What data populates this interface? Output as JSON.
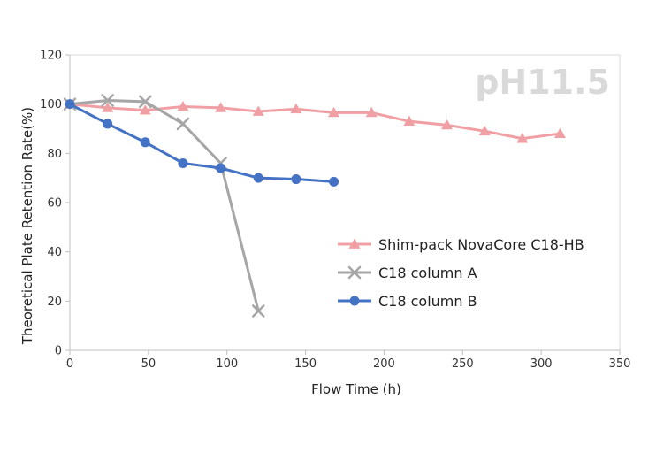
{
  "chart_data": {
    "type": "line",
    "title": "",
    "annotation": "pH11.5",
    "xlabel": "Flow Time (h)",
    "ylabel": "Theoretical Plate Retention Rate(%)",
    "xlim": [
      0,
      350
    ],
    "ylim": [
      0,
      120
    ],
    "xticks": [
      0,
      50,
      100,
      150,
      200,
      250,
      300,
      350
    ],
    "yticks": [
      0,
      20,
      40,
      60,
      80,
      100,
      120
    ],
    "xtick_labels": [
      "0",
      "50",
      "100",
      "150",
      "200",
      "250",
      "300",
      "350"
    ],
    "ytick_labels": [
      "0",
      "20",
      "40",
      "60",
      "80",
      "100",
      "120"
    ],
    "grid": false,
    "legend_position": "center-right",
    "series": [
      {
        "name": "Shim-pack NovaCore C18-HB",
        "color": "#f0a0a4",
        "marker": "triangle",
        "x": [
          0,
          24,
          48,
          72,
          96,
          120,
          144,
          168,
          192,
          216,
          240,
          264,
          288,
          312
        ],
        "y": [
          100,
          98.5,
          97.5,
          99,
          98.5,
          97,
          98,
          96.5,
          96.5,
          93,
          91.5,
          89,
          86,
          88
        ]
      },
      {
        "name": "C18 column A",
        "color": "#a6a6a6",
        "marker": "x",
        "x": [
          0,
          24,
          48,
          72,
          96,
          120
        ],
        "y": [
          100,
          101.5,
          101,
          92,
          76,
          16
        ]
      },
      {
        "name": "C18 column B",
        "color": "#4472c4",
        "marker": "circle",
        "x": [
          0,
          24,
          48,
          72,
          96,
          120,
          144,
          168
        ],
        "y": [
          100,
          92,
          84.5,
          76,
          74,
          70,
          69.5,
          68.5
        ]
      }
    ]
  }
}
